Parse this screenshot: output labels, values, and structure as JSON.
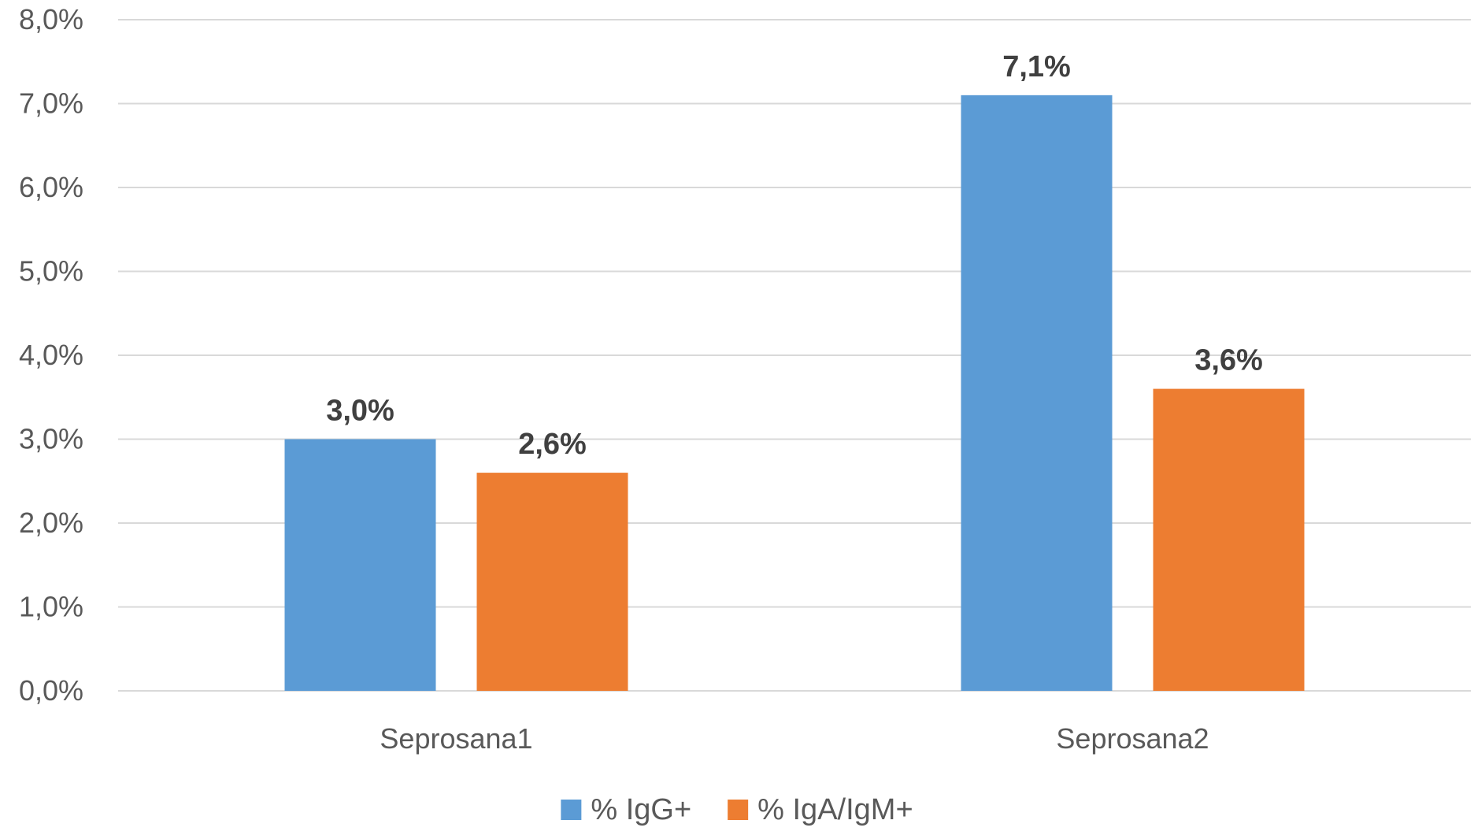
{
  "chart_data": {
    "type": "bar",
    "categories": [
      "Seprosana1",
      "Seprosana2"
    ],
    "series": [
      {
        "name": "% IgG+",
        "values": [
          3.0,
          7.1
        ],
        "labels": [
          "3,0%",
          "7,1%"
        ],
        "color": "#5B9BD5"
      },
      {
        "name": "% IgA/IgM+",
        "values": [
          2.6,
          3.6
        ],
        "labels": [
          "2,6%",
          "3,6%"
        ],
        "color": "#ED7D31"
      }
    ],
    "title": "",
    "xlabel": "",
    "ylabel": "",
    "ylim": [
      0,
      8
    ],
    "y_ticks": [
      0,
      1,
      2,
      3,
      4,
      5,
      6,
      7,
      8
    ],
    "y_tick_labels": [
      "0,0%",
      "1,0%",
      "2,0%",
      "3,0%",
      "4,0%",
      "5,0%",
      "6,0%",
      "7,0%",
      "8,0%"
    ],
    "grid": true,
    "legend_position": "bottom",
    "show_data_labels": true
  }
}
